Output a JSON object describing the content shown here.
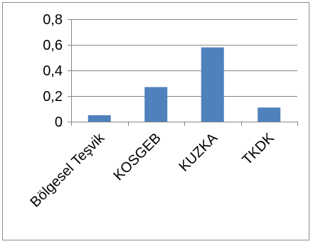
{
  "chart_data": {
    "type": "bar",
    "categories": [
      "Bölgesel Teşvik",
      "KOSGEB",
      "KUZKA",
      "TKDK"
    ],
    "values": [
      0.05,
      0.27,
      0.58,
      0.11
    ],
    "ylim": [
      0,
      0.8
    ],
    "y_ticks": [
      0,
      0.2,
      0.4,
      0.6,
      0.8
    ],
    "y_tick_labels": [
      "0",
      "0,2",
      "0,4",
      "0,6",
      "0,8"
    ],
    "title": "",
    "xlabel": "",
    "ylabel": "",
    "grid": "horizontal major gridlines",
    "legend": "none",
    "bar_color": "#4f81bd",
    "gridline_color": "#868686",
    "axis_color": "#868686"
  }
}
